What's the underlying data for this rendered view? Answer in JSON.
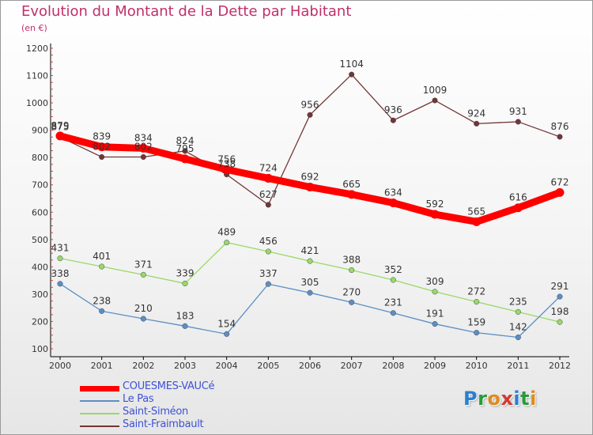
{
  "title": "Evolution du Montant de la Dette par Habitant",
  "unit_label": "(en €)",
  "logo_text": "Proxiti",
  "logo_colors": [
    "#2a7fcf",
    "#2a9a3c",
    "#e08a1e",
    "#d43a2e",
    "#2a7fcf",
    "#2a9a3c",
    "#e08a1e"
  ],
  "colors": {
    "title": "#c0306a",
    "legend_text": "#3d52d6"
  },
  "chart_data": {
    "type": "line",
    "x": [
      "2000",
      "2001",
      "2002",
      "2003",
      "2004",
      "2005",
      "2006",
      "2007",
      "2008",
      "2009",
      "2010",
      "2011",
      "2012"
    ],
    "ylim": [
      100,
      1200
    ],
    "yticks": [
      100,
      200,
      300,
      400,
      500,
      600,
      700,
      800,
      900,
      1000,
      1100,
      1200
    ],
    "grid": false,
    "legend_position": "bottom-left",
    "series": [
      {
        "name": "COUESMES-VAUCé",
        "color": "#ff0000",
        "values": [
          879,
          839,
          834,
          795,
          756,
          724,
          692,
          665,
          634,
          592,
          565,
          616,
          672
        ]
      },
      {
        "name": "Le Pas",
        "color": "#5b8fc4",
        "values": [
          338,
          238,
          210,
          183,
          154,
          337,
          305,
          270,
          231,
          191,
          159,
          142,
          291
        ]
      },
      {
        "name": "Saint-Siméon",
        "color": "#99d966",
        "values": [
          431,
          401,
          371,
          339,
          489,
          456,
          421,
          388,
          352,
          309,
          272,
          235,
          198
        ]
      },
      {
        "name": "Saint-Fraimbault",
        "color": "#733535",
        "values": [
          875,
          802,
          802,
          824,
          738,
          627,
          956,
          1104,
          936,
          1009,
          924,
          931,
          876
        ]
      }
    ]
  }
}
